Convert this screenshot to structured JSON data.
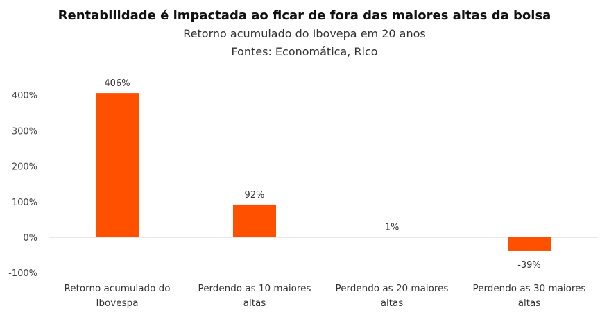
{
  "chart_data": {
    "type": "bar",
    "title": "Rentabilidade é impactada ao ficar de fora das maiores altas da bolsa",
    "subtitle": "Retorno acumulado do Ibovepa em 20 anos",
    "source": "Fontes: Economática, Rico",
    "categories": [
      [
        "Retorno acumulado do",
        "Ibovespa"
      ],
      [
        "Perdendo as 10 maiores",
        "altas"
      ],
      [
        "Perdendo as 20 maiores",
        "altas"
      ],
      [
        "Perdendo as 30 maiores",
        "altas"
      ]
    ],
    "values": [
      406,
      92,
      1,
      -39
    ],
    "data_labels": [
      "406%",
      "92%",
      "1%",
      "-39%"
    ],
    "yticks": [
      400,
      300,
      200,
      100,
      0,
      -100
    ],
    "ytick_labels": [
      "400%",
      "300%",
      "200%",
      "100%",
      "0%",
      "-100%"
    ],
    "ylim": [
      -100,
      400
    ],
    "bar_color": "#FF5000",
    "grid": false,
    "legend": "none"
  }
}
